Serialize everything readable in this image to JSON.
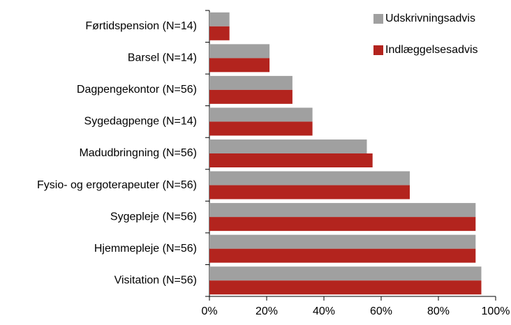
{
  "chart_data": {
    "type": "barh",
    "categories": [
      "Førtidspension (N=14)",
      "Barsel (N=14)",
      "Dagpengekontor (N=56)",
      "Sygedagpenge (N=14)",
      "Madudbringning (N=56)",
      "Fysio- og ergoterapeuter (N=56)",
      "Sygepleje (N=56)",
      "Hjemmepleje (N=56)",
      "Visitation (N=56)"
    ],
    "series": [
      {
        "name": "Udskrivningsadvis",
        "color": "#a0a0a0",
        "values": [
          7,
          21,
          29,
          36,
          55,
          70,
          93,
          93,
          95
        ]
      },
      {
        "name": "Indlæggelsesadvis",
        "color": "#b3241e",
        "values": [
          7,
          21,
          29,
          36,
          57,
          70,
          93,
          93,
          95
        ]
      }
    ],
    "xlim": [
      0,
      100
    ],
    "xticks": [
      {
        "value": 0,
        "label": "0%"
      },
      {
        "value": 20,
        "label": "20%"
      },
      {
        "value": 40,
        "label": "40%"
      },
      {
        "value": 60,
        "label": "60%"
      },
      {
        "value": 80,
        "label": "80%"
      },
      {
        "value": 100,
        "label": "100%"
      }
    ],
    "legend": "upper right"
  }
}
